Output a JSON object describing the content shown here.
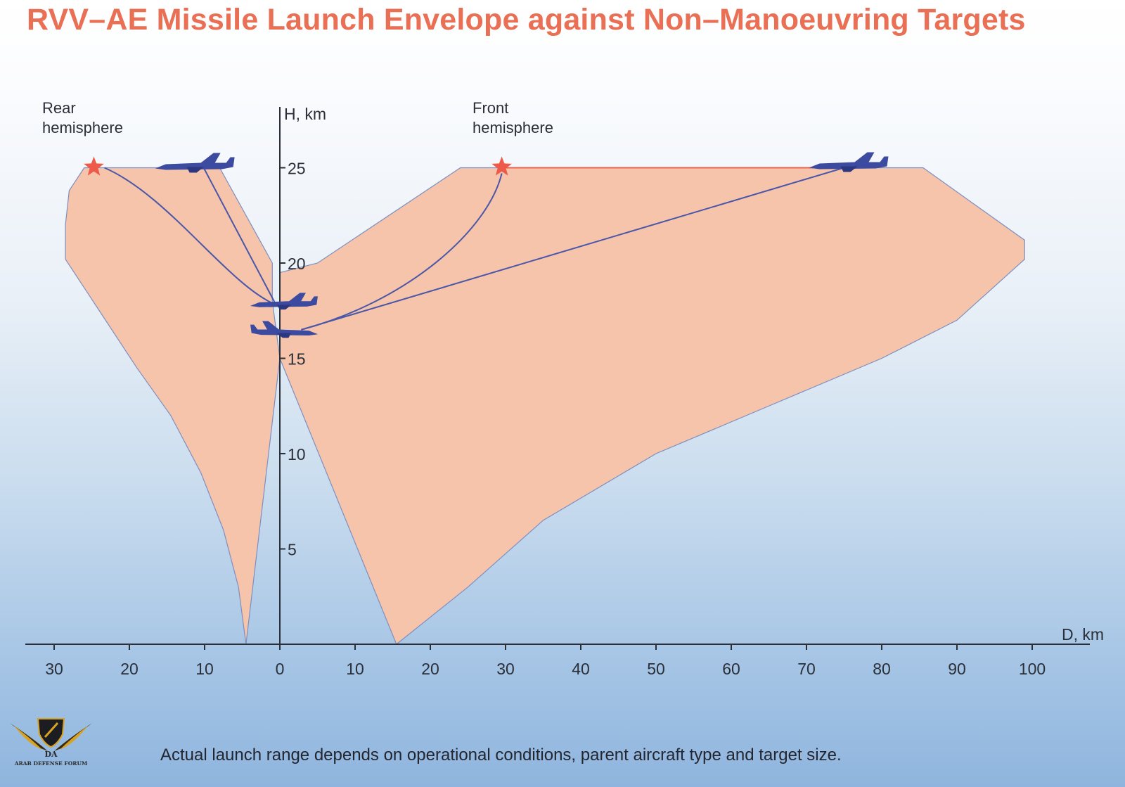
{
  "title": "RVV–AE Missile Launch Envelope against Non–Manoeuvring Targets",
  "footnote": "Actual launch range depends on operational conditions, parent aircraft type and target size.",
  "logo": {
    "text": "ARAB DEFENSE FORUM",
    "mark": "DA"
  },
  "colors": {
    "title": "#e96f55",
    "envelope_fill": "#f6c3ab",
    "envelope_edge": "#7d8fc0",
    "trajectory": "#4a57a8",
    "target_path": "#e8644e",
    "aircraft": "#3c4aa0",
    "burst_star": "#ee5a4a",
    "axis": "#2b2f38"
  },
  "chart_data": {
    "type": "area",
    "ylabel": "H, km",
    "xlabel": "D, km",
    "hemisphere_labels": {
      "rear": [
        "Rear",
        "hemisphere"
      ],
      "front": [
        "Front",
        "hemisphere"
      ]
    },
    "xlim": [
      -30,
      100
    ],
    "ylim": [
      0,
      25
    ],
    "x_ticks": [
      {
        "value": -30,
        "label": "30"
      },
      {
        "value": -20,
        "label": "20"
      },
      {
        "value": -10,
        "label": "10"
      },
      {
        "value": 0,
        "label": "0"
      },
      {
        "value": 10,
        "label": "10"
      },
      {
        "value": 20,
        "label": "20"
      },
      {
        "value": 30,
        "label": "30"
      },
      {
        "value": 40,
        "label": "40"
      },
      {
        "value": 50,
        "label": "50"
      },
      {
        "value": 60,
        "label": "60"
      },
      {
        "value": 70,
        "label": "70"
      },
      {
        "value": 80,
        "label": "80"
      },
      {
        "value": 90,
        "label": "90"
      },
      {
        "value": 100,
        "label": "100"
      }
    ],
    "y_ticks": [
      {
        "value": 5,
        "label": "5"
      },
      {
        "value": 10,
        "label": "10"
      },
      {
        "value": 15,
        "label": "15"
      },
      {
        "value": 20,
        "label": "20"
      },
      {
        "value": 25,
        "label": "25"
      }
    ],
    "envelope": {
      "rear": [
        [
          -4.5,
          0
        ],
        [
          -5.5,
          3
        ],
        [
          -7.5,
          6
        ],
        [
          -10.5,
          9
        ],
        [
          -14.5,
          12
        ],
        [
          -19,
          14.5
        ],
        [
          -24.5,
          17.8
        ],
        [
          -28.5,
          20.2
        ],
        [
          -28.5,
          22
        ],
        [
          -28,
          23.8
        ],
        [
          -26,
          25
        ],
        [
          -8,
          25
        ],
        [
          -1,
          20
        ],
        [
          -1,
          18
        ],
        [
          -0.5,
          16.5
        ],
        [
          0,
          15
        ]
      ],
      "front": [
        [
          0,
          15
        ],
        [
          0,
          18
        ],
        [
          0,
          19.5
        ],
        [
          5,
          20
        ],
        [
          24,
          25
        ],
        [
          85.5,
          25
        ],
        [
          99,
          21.2
        ],
        [
          99,
          20.2
        ],
        [
          90,
          17
        ],
        [
          80,
          15
        ],
        [
          65,
          12.5
        ],
        [
          50,
          10
        ],
        [
          35,
          6.5
        ],
        [
          25,
          3
        ],
        [
          15.5,
          0
        ]
      ]
    },
    "rear_hemisphere": {
      "launch_aircraft": {
        "x": -0.5,
        "y": 17.8
      },
      "target_aircraft": {
        "x": -10.5,
        "y": 25
      },
      "missile_burst": {
        "x": -25,
        "y": 25
      }
    },
    "front_hemisphere": {
      "launch_aircraft": {
        "x": 0.5,
        "y": 16.5
      },
      "target_aircraft": {
        "x": 75,
        "y": 25
      },
      "missile_burst": {
        "x": 29.5,
        "y": 25
      }
    }
  }
}
